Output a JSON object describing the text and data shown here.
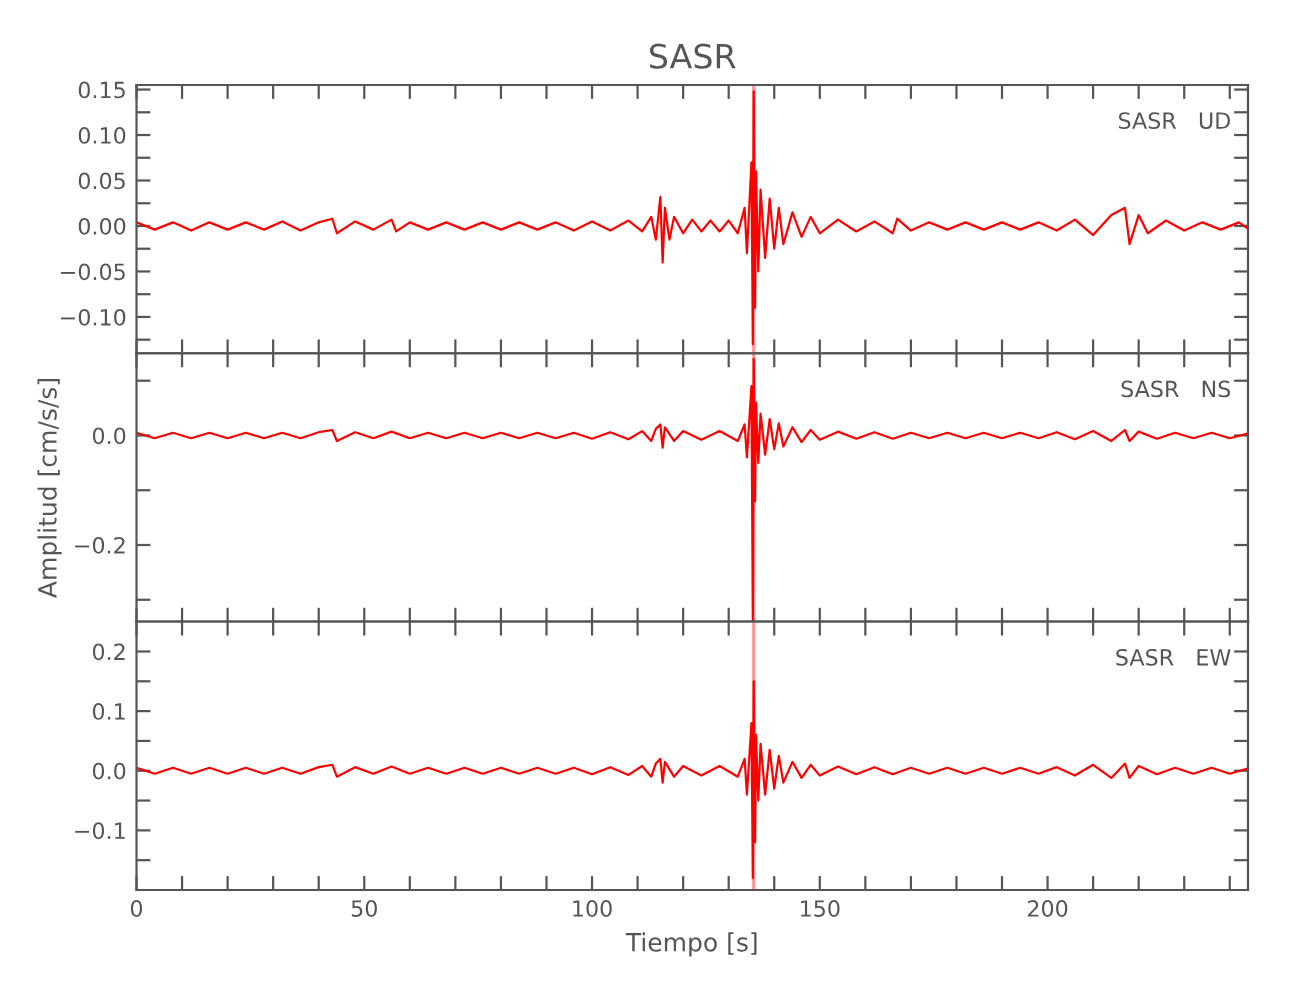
{
  "chart_data": [
    {
      "type": "line",
      "title": "SASR",
      "annotations": [
        "SASR   UD"
      ],
      "tick_labels": "y",
      "grid": false,
      "legend": false,
      "xlim": [
        0,
        244
      ],
      "xticks": [
        {
          "value": 0,
          "label": null
        },
        {
          "value": 10,
          "label": null
        },
        {
          "value": 20,
          "label": null
        },
        {
          "value": 30,
          "label": null
        },
        {
          "value": 40,
          "label": null
        },
        {
          "value": 50,
          "label": null
        },
        {
          "value": 60,
          "label": null
        },
        {
          "value": 70,
          "label": null
        },
        {
          "value": 80,
          "label": null
        },
        {
          "value": 90,
          "label": null
        },
        {
          "value": 100,
          "label": null
        },
        {
          "value": 110,
          "label": null
        },
        {
          "value": 120,
          "label": null
        },
        {
          "value": 130,
          "label": null
        },
        {
          "value": 140,
          "label": null
        },
        {
          "value": 150,
          "label": null
        },
        {
          "value": 160,
          "label": null
        },
        {
          "value": 170,
          "label": null
        },
        {
          "value": 180,
          "label": null
        },
        {
          "value": 190,
          "label": null
        },
        {
          "value": 200,
          "label": null
        },
        {
          "value": 210,
          "label": null
        },
        {
          "value": 220,
          "label": null
        },
        {
          "value": 230,
          "label": null
        },
        {
          "value": 240,
          "label": null
        }
      ],
      "ylim": [
        -0.14,
        0.155
      ],
      "yticks": [
        {
          "value": -0.125,
          "label": null
        },
        {
          "value": -0.1,
          "label": "−0.10"
        },
        {
          "value": -0.075,
          "label": null
        },
        {
          "value": -0.05,
          "label": "−0.05"
        },
        {
          "value": -0.025,
          "label": null
        },
        {
          "value": 0,
          "label": "0.00"
        },
        {
          "value": 0.025,
          "label": null
        },
        {
          "value": 0.05,
          "label": "0.05"
        },
        {
          "value": 0.075,
          "label": null
        },
        {
          "value": 0.1,
          "label": "0.10"
        },
        {
          "value": 0.125,
          "label": null
        },
        {
          "value": 0.15,
          "label": "0.15"
        }
      ],
      "ref_lines": [
        {
          "axis": "x",
          "value": 135.5,
          "color": "#ff9999"
        }
      ],
      "series": [
        {
          "color": "#ff0000",
          "x": [
            0,
            4,
            8,
            12,
            16,
            20,
            24,
            28,
            32,
            36,
            40,
            43,
            44,
            48,
            52,
            56,
            57,
            60,
            64,
            68,
            72,
            76,
            80,
            84,
            88,
            92,
            96,
            100,
            104,
            108,
            111,
            113,
            114,
            115,
            115.5,
            116,
            117,
            118,
            120,
            122,
            124,
            126,
            128,
            130,
            132,
            133.5,
            134,
            135,
            135.3,
            135.5,
            135.8,
            136,
            136.5,
            137,
            138,
            139,
            140,
            141,
            142,
            144,
            146,
            148,
            150,
            154,
            158,
            162,
            166,
            167,
            170,
            174,
            178,
            182,
            186,
            190,
            194,
            198,
            202,
            206,
            210,
            214,
            217,
            218,
            220,
            222,
            226,
            230,
            234,
            238,
            242,
            244
          ],
          "values": [
            0.004,
            -0.004,
            0.004,
            -0.005,
            0.004,
            -0.004,
            0.004,
            -0.004,
            0.005,
            -0.005,
            0.004,
            0.008,
            -0.008,
            0.005,
            -0.004,
            0.007,
            -0.006,
            0.004,
            -0.004,
            0.004,
            -0.004,
            0.004,
            -0.004,
            0.004,
            -0.004,
            0.004,
            -0.005,
            0.005,
            -0.005,
            0.006,
            -0.006,
            0.01,
            -0.015,
            0.032,
            -0.04,
            0.02,
            -0.015,
            0.01,
            -0.008,
            0.007,
            -0.006,
            0.006,
            -0.006,
            0.006,
            -0.008,
            0.02,
            -0.03,
            0.07,
            -0.13,
            0.148,
            -0.09,
            0.06,
            -0.05,
            0.04,
            -0.035,
            0.03,
            -0.025,
            0.02,
            -0.02,
            0.015,
            -0.012,
            0.01,
            -0.008,
            0.007,
            -0.006,
            0.005,
            -0.008,
            0.008,
            -0.005,
            0.004,
            -0.004,
            0.004,
            -0.004,
            0.004,
            -0.004,
            0.004,
            -0.005,
            0.007,
            -0.01,
            0.012,
            0.02,
            -0.02,
            0.012,
            -0.008,
            0.006,
            -0.005,
            0.004,
            -0.004,
            0.004,
            -0.003
          ]
        }
      ]
    },
    {
      "type": "line",
      "ylabel": "Amplitud [cm/s/s]",
      "annotations": [
        "SASR   NS"
      ],
      "tick_labels": "y",
      "grid": false,
      "legend": false,
      "xlim": [
        0,
        244
      ],
      "xticks": [
        {
          "value": 0,
          "label": null
        },
        {
          "value": 10,
          "label": null
        },
        {
          "value": 20,
          "label": null
        },
        {
          "value": 30,
          "label": null
        },
        {
          "value": 40,
          "label": null
        },
        {
          "value": 50,
          "label": null
        },
        {
          "value": 60,
          "label": null
        },
        {
          "value": 70,
          "label": null
        },
        {
          "value": 80,
          "label": null
        },
        {
          "value": 90,
          "label": null
        },
        {
          "value": 100,
          "label": null
        },
        {
          "value": 110,
          "label": null
        },
        {
          "value": 120,
          "label": null
        },
        {
          "value": 130,
          "label": null
        },
        {
          "value": 140,
          "label": null
        },
        {
          "value": 150,
          "label": null
        },
        {
          "value": 160,
          "label": null
        },
        {
          "value": 170,
          "label": null
        },
        {
          "value": 180,
          "label": null
        },
        {
          "value": 190,
          "label": null
        },
        {
          "value": 200,
          "label": null
        },
        {
          "value": 210,
          "label": null
        },
        {
          "value": 220,
          "label": null
        },
        {
          "value": 230,
          "label": null
        },
        {
          "value": 240,
          "label": null
        }
      ],
      "ylim": [
        -0.34,
        0.15
      ],
      "yticks": [
        {
          "value": -0.3,
          "label": null
        },
        {
          "value": -0.2,
          "label": "−0.2"
        },
        {
          "value": -0.1,
          "label": null
        },
        {
          "value": 0,
          "label": "0.0"
        },
        {
          "value": 0.1,
          "label": null
        }
      ],
      "ref_lines": [
        {
          "axis": "x",
          "value": 135.5,
          "color": "#ff9999"
        }
      ],
      "series": [
        {
          "color": "#ff0000",
          "x": [
            0,
            4,
            8,
            12,
            16,
            20,
            24,
            28,
            32,
            36,
            40,
            43,
            44,
            48,
            52,
            56,
            60,
            64,
            68,
            72,
            76,
            80,
            84,
            88,
            92,
            96,
            100,
            104,
            108,
            111,
            113,
            114,
            115,
            115.5,
            116,
            118,
            120,
            124,
            128,
            132,
            133.5,
            134,
            135,
            135.3,
            135.5,
            135.8,
            136,
            136.5,
            137,
            138,
            139,
            140,
            141,
            142,
            144,
            146,
            148,
            150,
            154,
            158,
            162,
            166,
            170,
            174,
            178,
            182,
            186,
            190,
            194,
            198,
            202,
            206,
            210,
            214,
            217,
            218,
            220,
            224,
            228,
            232,
            236,
            240,
            244
          ],
          "values": [
            0.005,
            -0.005,
            0.005,
            -0.005,
            0.005,
            -0.005,
            0.005,
            -0.005,
            0.005,
            -0.005,
            0.006,
            0.01,
            -0.01,
            0.006,
            -0.005,
            0.007,
            -0.005,
            0.005,
            -0.005,
            0.005,
            -0.005,
            0.005,
            -0.005,
            0.005,
            -0.005,
            0.005,
            -0.006,
            0.006,
            -0.007,
            0.008,
            -0.01,
            0.012,
            0.02,
            -0.022,
            0.015,
            -0.01,
            0.008,
            -0.008,
            0.008,
            -0.01,
            0.02,
            -0.04,
            0.09,
            -0.34,
            0.14,
            -0.12,
            0.06,
            -0.05,
            0.04,
            -0.035,
            0.03,
            -0.025,
            0.022,
            -0.02,
            0.015,
            -0.012,
            0.01,
            -0.008,
            0.007,
            -0.006,
            0.006,
            -0.006,
            0.005,
            -0.005,
            0.005,
            -0.005,
            0.005,
            -0.005,
            0.005,
            -0.005,
            0.006,
            -0.007,
            0.008,
            -0.01,
            0.01,
            -0.01,
            0.007,
            -0.006,
            0.005,
            -0.005,
            0.005,
            -0.005,
            0.004
          ]
        }
      ]
    },
    {
      "type": "line",
      "xlabel": "Tiempo [s]",
      "annotations": [
        "SASR   EW"
      ],
      "grid": false,
      "legend": false,
      "xlim": [
        0,
        244
      ],
      "xticks": [
        {
          "value": 0,
          "label": "0"
        },
        {
          "value": 10,
          "label": null
        },
        {
          "value": 20,
          "label": null
        },
        {
          "value": 30,
          "label": null
        },
        {
          "value": 40,
          "label": null
        },
        {
          "value": 50,
          "label": "50"
        },
        {
          "value": 60,
          "label": null
        },
        {
          "value": 70,
          "label": null
        },
        {
          "value": 80,
          "label": null
        },
        {
          "value": 90,
          "label": null
        },
        {
          "value": 100,
          "label": "100"
        },
        {
          "value": 110,
          "label": null
        },
        {
          "value": 120,
          "label": null
        },
        {
          "value": 130,
          "label": null
        },
        {
          "value": 140,
          "label": null
        },
        {
          "value": 150,
          "label": "150"
        },
        {
          "value": 160,
          "label": null
        },
        {
          "value": 170,
          "label": null
        },
        {
          "value": 180,
          "label": null
        },
        {
          "value": 190,
          "label": null
        },
        {
          "value": 200,
          "label": "200"
        },
        {
          "value": 210,
          "label": null
        },
        {
          "value": 220,
          "label": null
        },
        {
          "value": 230,
          "label": null
        },
        {
          "value": 240,
          "label": null
        }
      ],
      "ylim": [
        -0.2,
        0.25
      ],
      "yticks": [
        {
          "value": -0.15,
          "label": null
        },
        {
          "value": -0.1,
          "label": "−0.1"
        },
        {
          "value": -0.05,
          "label": null
        },
        {
          "value": 0,
          "label": "0.0"
        },
        {
          "value": 0.05,
          "label": null
        },
        {
          "value": 0.1,
          "label": "0.1"
        },
        {
          "value": 0.15,
          "label": null
        },
        {
          "value": 0.2,
          "label": "0.2"
        }
      ],
      "ref_lines": [
        {
          "axis": "x",
          "value": 135.5,
          "color": "#ff9999"
        }
      ],
      "series": [
        {
          "color": "#ff0000",
          "x": [
            0,
            4,
            8,
            12,
            16,
            20,
            24,
            28,
            32,
            36,
            40,
            43,
            44,
            48,
            52,
            56,
            60,
            64,
            68,
            72,
            76,
            80,
            84,
            88,
            92,
            96,
            100,
            104,
            108,
            111,
            113,
            114,
            115,
            115.5,
            116,
            118,
            120,
            124,
            128,
            132,
            133.5,
            134,
            135,
            135.3,
            135.5,
            135.8,
            136,
            136.5,
            137,
            138,
            139,
            140,
            141,
            142,
            144,
            146,
            148,
            150,
            154,
            158,
            162,
            166,
            170,
            174,
            178,
            182,
            186,
            190,
            194,
            198,
            202,
            206,
            210,
            214,
            217,
            218,
            220,
            224,
            228,
            232,
            236,
            240,
            244
          ],
          "values": [
            0.005,
            -0.005,
            0.005,
            -0.005,
            0.005,
            -0.005,
            0.005,
            -0.005,
            0.005,
            -0.005,
            0.006,
            0.01,
            -0.01,
            0.006,
            -0.005,
            0.007,
            -0.005,
            0.005,
            -0.005,
            0.005,
            -0.005,
            0.005,
            -0.005,
            0.005,
            -0.005,
            0.005,
            -0.006,
            0.006,
            -0.007,
            0.008,
            -0.01,
            0.012,
            0.02,
            -0.02,
            0.015,
            -0.01,
            0.008,
            -0.008,
            0.008,
            -0.01,
            0.02,
            -0.04,
            0.08,
            -0.18,
            0.15,
            -0.12,
            0.06,
            -0.05,
            0.045,
            -0.04,
            0.035,
            -0.03,
            0.025,
            -0.02,
            0.015,
            -0.012,
            0.01,
            -0.008,
            0.007,
            -0.006,
            0.006,
            -0.006,
            0.005,
            -0.005,
            0.005,
            -0.005,
            0.005,
            -0.005,
            0.005,
            -0.005,
            0.006,
            -0.008,
            0.01,
            -0.012,
            0.012,
            -0.012,
            0.008,
            -0.006,
            0.005,
            -0.005,
            0.005,
            -0.005,
            0.004
          ]
        }
      ]
    }
  ]
}
